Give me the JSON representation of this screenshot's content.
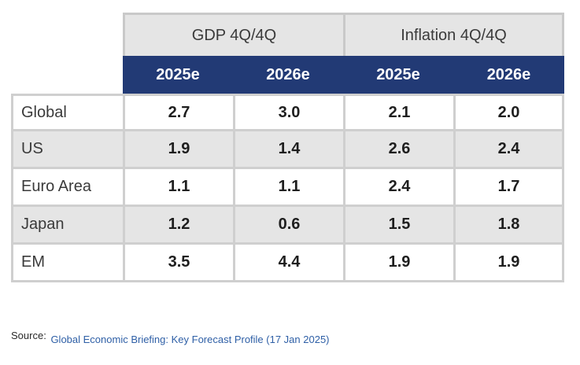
{
  "chart_data": {
    "type": "table",
    "column_groups": [
      "GDP 4Q/4Q",
      "Inflation 4Q/4Q"
    ],
    "years": [
      "2025e",
      "2026e",
      "2025e",
      "2026e"
    ],
    "rows": [
      {
        "label": "Global",
        "values": [
          "2.7",
          "3.0",
          "2.1",
          "2.0"
        ]
      },
      {
        "label": "US",
        "values": [
          "1.9",
          "1.4",
          "2.6",
          "2.4"
        ]
      },
      {
        "label": "Euro Area",
        "values": [
          "1.1",
          "1.1",
          "2.4",
          "1.7"
        ]
      },
      {
        "label": "Japan",
        "values": [
          "1.2",
          "0.6",
          "1.5",
          "1.8"
        ]
      },
      {
        "label": "EM",
        "values": [
          "3.5",
          "4.4",
          "1.9",
          "1.9"
        ]
      }
    ]
  },
  "source": {
    "label": "Source:",
    "text": "Global Economic Briefing: Key Forecast Profile (17 Jan 2025)"
  },
  "colors": {
    "header_navy": "#223a75",
    "header_gray": "#e5e5e5",
    "row_alt_gray": "#e5e5e5",
    "source_link": "#2e5fa6"
  }
}
